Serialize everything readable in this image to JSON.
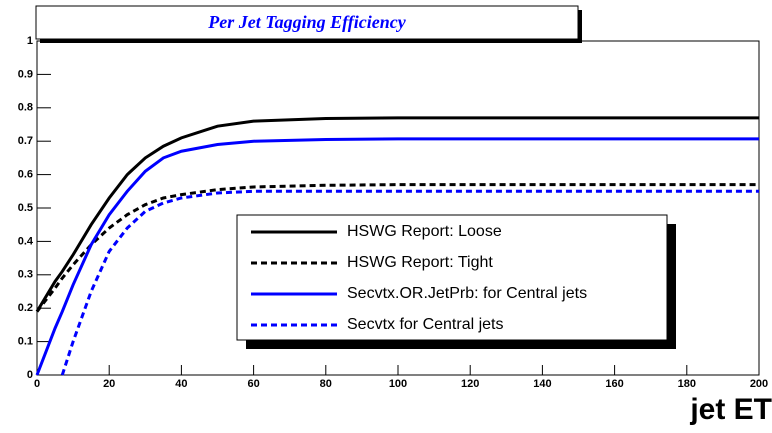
{
  "chart_data": {
    "type": "line",
    "title": "Per Jet Tagging Efficiency",
    "x_label": "jet ET",
    "x": [
      0,
      5,
      7,
      10,
      15,
      20,
      25,
      30,
      35,
      40,
      50,
      60,
      80,
      100,
      150,
      200
    ],
    "series": [
      {
        "name": "HSWG Report: Loose",
        "color": "#000000",
        "dashed": false,
        "values": [
          0.19,
          0.28,
          0.31,
          0.36,
          0.45,
          0.53,
          0.6,
          0.65,
          0.685,
          0.71,
          0.745,
          0.76,
          0.768,
          0.77,
          0.77,
          0.77
        ]
      },
      {
        "name": "HSWG Report: Tight",
        "color": "#000000",
        "dashed": true,
        "values": [
          0.19,
          0.26,
          0.29,
          0.33,
          0.39,
          0.44,
          0.48,
          0.51,
          0.53,
          0.54,
          0.555,
          0.563,
          0.568,
          0.57,
          0.57,
          0.57
        ]
      },
      {
        "name": "Secvtx.OR.JetPrb: for Central jets",
        "color": "#0000ff",
        "dashed": false,
        "values": [
          0.0,
          0.14,
          0.19,
          0.27,
          0.39,
          0.48,
          0.55,
          0.61,
          0.65,
          0.67,
          0.69,
          0.7,
          0.705,
          0.707,
          0.707,
          0.707
        ]
      },
      {
        "name": "Secvtx for Central jets",
        "color": "#0000ff",
        "dashed": true,
        "values": [
          null,
          null,
          0.0,
          0.1,
          0.25,
          0.37,
          0.44,
          0.49,
          0.515,
          0.53,
          0.545,
          0.55,
          0.55,
          0.55,
          0.55,
          0.55
        ]
      }
    ],
    "xlim": [
      0,
      200
    ],
    "xticks": [
      0,
      20,
      40,
      60,
      80,
      100,
      120,
      140,
      160,
      180,
      200
    ],
    "ylim": [
      0,
      1
    ],
    "yticks": [
      0,
      0.1,
      0.2,
      0.3,
      0.4,
      0.5,
      0.6,
      0.7,
      0.8,
      0.9,
      1
    ]
  }
}
